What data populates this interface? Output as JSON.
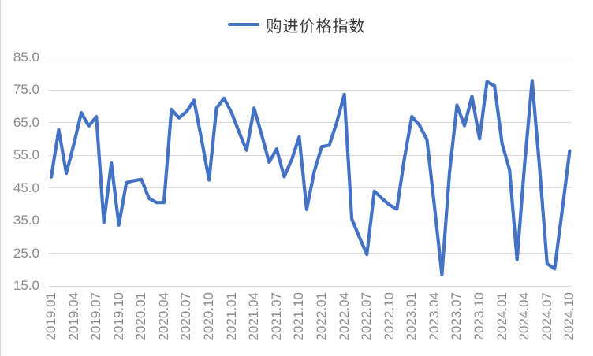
{
  "chart_data": {
    "type": "line",
    "title": "",
    "legend_position": "top",
    "grid": "horizontal",
    "background": "#FFFFFF",
    "colors": {
      "line": "#4472C4",
      "gridline": "#D9D9D9",
      "axis_label": "#8A8A8A",
      "legend_text": "#3A3A3A"
    },
    "ylim": [
      15,
      85
    ],
    "y_ticks": [
      85,
      75,
      65,
      55,
      45,
      35,
      25,
      15
    ],
    "y_tick_labels": [
      "85.0",
      "75.0",
      "65.0",
      "55.0",
      "45.0",
      "35.0",
      "25.0",
      "15.0"
    ],
    "x_tick_step": 3,
    "x": [
      "2019.01",
      "2019.02",
      "2019.03",
      "2019.04",
      "2019.05",
      "2019.06",
      "2019.07",
      "2019.08",
      "2019.09",
      "2019.10",
      "2019.11",
      "2019.12",
      "2020.01",
      "2020.02",
      "2020.03",
      "2020.04",
      "2020.05",
      "2020.06",
      "2020.07",
      "2020.08",
      "2020.09",
      "2020.10",
      "2020.11",
      "2020.12",
      "2021.01",
      "2021.02",
      "2021.03",
      "2021.04",
      "2021.05",
      "2021.06",
      "2021.07",
      "2021.08",
      "2021.09",
      "2021.10",
      "2021.11",
      "2021.12",
      "2022.01",
      "2022.02",
      "2022.03",
      "2022.04",
      "2022.05",
      "2022.06",
      "2022.07",
      "2022.08",
      "2022.09",
      "2022.10",
      "2022.11",
      "2022.12",
      "2023.01",
      "2023.02",
      "2023.03",
      "2023.04",
      "2023.05",
      "2023.06",
      "2023.07",
      "2023.08",
      "2023.09",
      "2023.10",
      "2023.11",
      "2023.12",
      "2024.01",
      "2024.02",
      "2024.03",
      "2024.04",
      "2024.05",
      "2024.06",
      "2024.07",
      "2024.08",
      "2024.09",
      "2024.10"
    ],
    "series": [
      {
        "name": "购进价格指数",
        "color": "#4472C4",
        "values": [
          48.3,
          62.8,
          49.4,
          58.3,
          68.0,
          63.9,
          66.8,
          34.4,
          52.6,
          33.6,
          46.6,
          47.2,
          47.6,
          41.8,
          40.5,
          40.5,
          69.0,
          66.4,
          68.3,
          71.8,
          59.8,
          47.4,
          69.4,
          72.4,
          68.0,
          62.0,
          56.5,
          69.4,
          61.3,
          52.8,
          56.9,
          48.4,
          53.6,
          60.6,
          38.4,
          50.0,
          57.6,
          58.0,
          65.0,
          73.6,
          35.5,
          30.0,
          24.6,
          44.0,
          41.8,
          39.8,
          38.5,
          54.0,
          66.8,
          64.2,
          59.8,
          39.5,
          18.4,
          49.5,
          70.3,
          64.0,
          73.0,
          60.0,
          77.5,
          76.2,
          58.5,
          50.5,
          23.0,
          52.0,
          77.8,
          51.0,
          21.8,
          20.2,
          38.0,
          56.3
        ]
      }
    ]
  }
}
